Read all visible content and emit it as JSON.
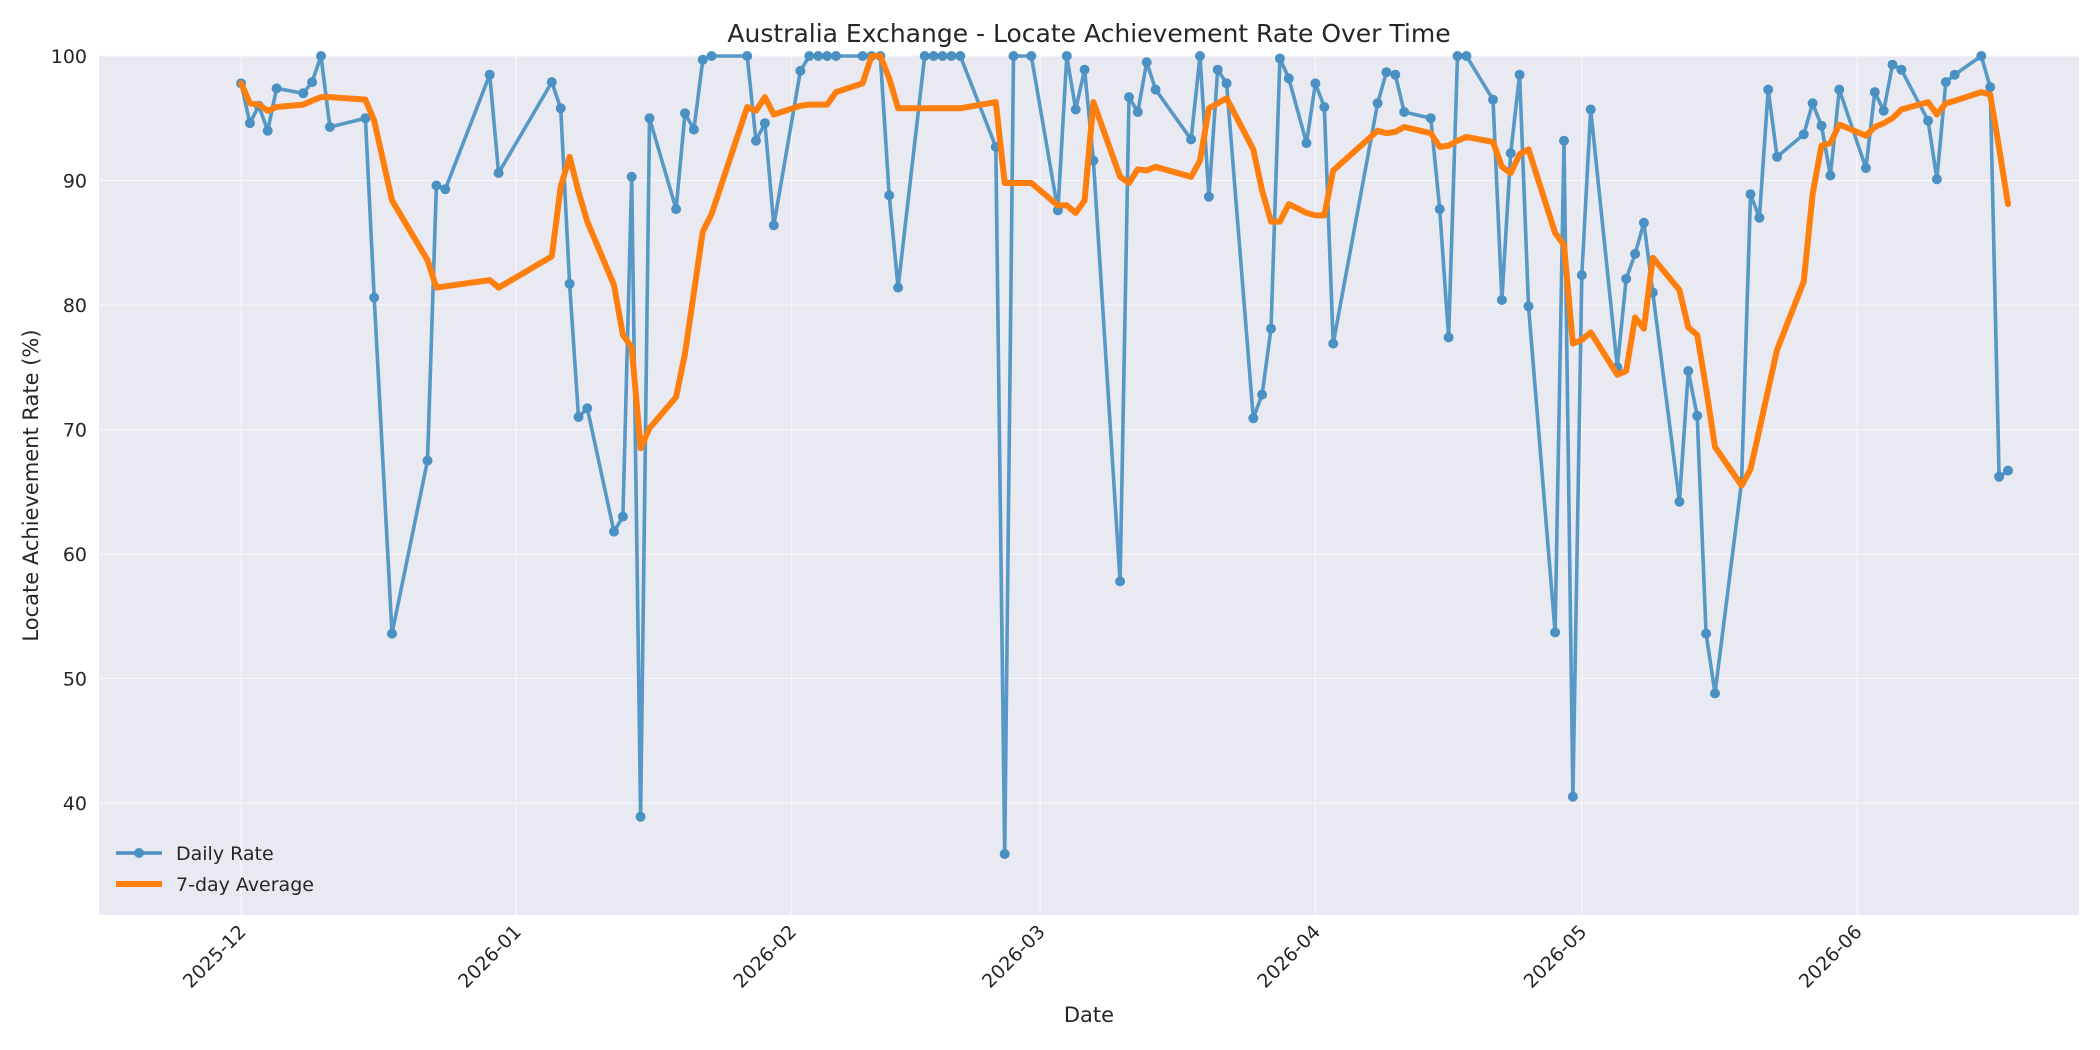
{
  "chart_data": {
    "type": "line",
    "title": "Australia Exchange - Locate Achievement Rate Over Time",
    "xlabel": "Date",
    "ylabel": "Locate Achievement Rate (%)",
    "xlim": [
      "2025-11-15",
      "2026-06-26"
    ],
    "ylim": [
      31,
      100
    ],
    "x_ticks": [
      "2025-12",
      "2026-01",
      "2026-02",
      "2026-03",
      "2026-04",
      "2026-05",
      "2026-06"
    ],
    "y_ticks": [
      40,
      50,
      60,
      70,
      80,
      90,
      100
    ],
    "grid": true,
    "legend_position": "lower-left",
    "colors": {
      "daily": "#4a90c2",
      "average": "#ff7f0e",
      "plot_bg": "#e9e9f1",
      "grid": "#f7f7fa"
    },
    "series": [
      {
        "name": "Daily Rate",
        "marker": "circle",
        "points": [
          [
            "2025-12-01",
            97.8
          ],
          [
            "2025-12-02",
            94.6
          ],
          [
            "2025-12-03",
            96.0
          ],
          [
            "2025-12-04",
            94.0
          ],
          [
            "2025-12-05",
            97.4
          ],
          [
            "2025-12-08",
            97.0
          ],
          [
            "2025-12-09",
            97.9
          ],
          [
            "2025-12-10",
            100.0
          ],
          [
            "2025-12-11",
            94.3
          ],
          [
            "2025-12-15",
            95.0
          ],
          [
            "2025-12-16",
            80.6
          ],
          [
            "2025-12-18",
            53.6
          ],
          [
            "2025-12-22",
            67.5
          ],
          [
            "2025-12-23",
            89.6
          ],
          [
            "2025-12-24",
            89.3
          ],
          [
            "2025-12-29",
            98.5
          ],
          [
            "2025-12-30",
            90.6
          ],
          [
            "2026-01-05",
            97.9
          ],
          [
            "2026-01-06",
            95.8
          ],
          [
            "2026-01-07",
            81.7
          ],
          [
            "2026-01-08",
            71.0
          ],
          [
            "2026-01-09",
            71.7
          ],
          [
            "2026-01-12",
            61.8
          ],
          [
            "2026-01-13",
            63.0
          ],
          [
            "2026-01-14",
            90.3
          ],
          [
            "2026-01-15",
            38.9
          ],
          [
            "2026-01-16",
            95.0
          ],
          [
            "2026-01-19",
            87.7
          ],
          [
            "2026-01-20",
            95.4
          ],
          [
            "2026-01-21",
            94.1
          ],
          [
            "2026-01-22",
            99.7
          ],
          [
            "2026-01-23",
            100.0
          ],
          [
            "2026-01-27",
            100.0
          ],
          [
            "2026-01-28",
            93.2
          ],
          [
            "2026-01-29",
            94.6
          ],
          [
            "2026-01-30",
            86.4
          ],
          [
            "2026-02-02",
            98.8
          ],
          [
            "2026-02-03",
            100.0
          ],
          [
            "2026-02-04",
            100.0
          ],
          [
            "2026-02-05",
            100.0
          ],
          [
            "2026-02-06",
            100.0
          ],
          [
            "2026-02-09",
            100.0
          ],
          [
            "2026-02-10",
            100.0
          ],
          [
            "2026-02-11",
            100.0
          ],
          [
            "2026-02-12",
            88.8
          ],
          [
            "2026-02-13",
            81.4
          ],
          [
            "2026-02-16",
            100.0
          ],
          [
            "2026-02-17",
            100.0
          ],
          [
            "2026-02-18",
            100.0
          ],
          [
            "2026-02-19",
            100.0
          ],
          [
            "2026-02-20",
            100.0
          ],
          [
            "2026-02-24",
            92.7
          ],
          [
            "2026-02-25",
            35.9
          ],
          [
            "2026-02-26",
            100.0
          ],
          [
            "2026-02-28",
            100.0
          ],
          [
            "2026-03-03",
            87.6
          ],
          [
            "2026-03-04",
            100.0
          ],
          [
            "2026-03-05",
            95.7
          ],
          [
            "2026-03-06",
            98.9
          ],
          [
            "2026-03-07",
            91.6
          ],
          [
            "2026-03-10",
            57.8
          ],
          [
            "2026-03-11",
            96.7
          ],
          [
            "2026-03-12",
            95.5
          ],
          [
            "2026-03-13",
            99.5
          ],
          [
            "2026-03-14",
            97.3
          ],
          [
            "2026-03-18",
            93.3
          ],
          [
            "2026-03-19",
            100.0
          ],
          [
            "2026-03-20",
            88.7
          ],
          [
            "2026-03-21",
            98.9
          ],
          [
            "2026-03-22",
            97.8
          ],
          [
            "2026-03-25",
            70.9
          ],
          [
            "2026-03-26",
            72.8
          ],
          [
            "2026-03-27",
            78.1
          ],
          [
            "2026-03-28",
            99.8
          ],
          [
            "2026-03-29",
            98.2
          ],
          [
            "2026-03-31",
            93.0
          ],
          [
            "2026-04-01",
            97.8
          ],
          [
            "2026-04-02",
            95.9
          ],
          [
            "2026-04-03",
            76.9
          ],
          [
            "2026-04-08",
            96.2
          ],
          [
            "2026-04-09",
            98.7
          ],
          [
            "2026-04-10",
            98.5
          ],
          [
            "2026-04-11",
            95.5
          ],
          [
            "2026-04-14",
            95.0
          ],
          [
            "2026-04-15",
            87.7
          ],
          [
            "2026-04-16",
            77.4
          ],
          [
            "2026-04-17",
            100.0
          ],
          [
            "2026-04-18",
            100.0
          ],
          [
            "2026-04-21",
            96.5
          ],
          [
            "2026-04-22",
            80.4
          ],
          [
            "2026-04-23",
            92.2
          ],
          [
            "2026-04-24",
            98.5
          ],
          [
            "2026-04-25",
            79.9
          ],
          [
            "2026-04-28",
            53.7
          ],
          [
            "2026-04-29",
            93.2
          ],
          [
            "2026-04-30",
            40.5
          ],
          [
            "2026-05-01",
            82.4
          ],
          [
            "2026-05-02",
            95.7
          ],
          [
            "2026-05-05",
            75.0
          ],
          [
            "2026-05-06",
            82.1
          ],
          [
            "2026-05-07",
            84.1
          ],
          [
            "2026-05-08",
            86.6
          ],
          [
            "2026-05-09",
            81.0
          ],
          [
            "2026-05-12",
            64.2
          ],
          [
            "2026-05-13",
            74.7
          ],
          [
            "2026-05-14",
            71.1
          ],
          [
            "2026-05-15",
            53.6
          ],
          [
            "2026-05-16",
            48.8
          ],
          [
            "2026-05-19",
            65.8
          ],
          [
            "2026-05-20",
            88.9
          ],
          [
            "2026-05-21",
            87.0
          ],
          [
            "2026-05-22",
            97.3
          ],
          [
            "2026-05-23",
            91.9
          ],
          [
            "2026-05-26",
            93.7
          ],
          [
            "2026-05-27",
            96.2
          ],
          [
            "2026-05-28",
            94.4
          ],
          [
            "2026-05-29",
            90.4
          ],
          [
            "2026-05-30",
            97.3
          ],
          [
            "2026-06-02",
            91.0
          ],
          [
            "2026-06-03",
            97.1
          ],
          [
            "2026-06-04",
            95.6
          ],
          [
            "2026-06-05",
            99.3
          ],
          [
            "2026-06-06",
            98.9
          ],
          [
            "2026-06-09",
            94.8
          ],
          [
            "2026-06-10",
            90.1
          ],
          [
            "2026-06-11",
            97.9
          ],
          [
            "2026-06-12",
            98.5
          ],
          [
            "2026-06-15",
            100.0
          ],
          [
            "2026-06-16",
            97.5
          ],
          [
            "2026-06-17",
            66.2
          ],
          [
            "2026-06-18",
            66.7
          ]
        ]
      },
      {
        "name": "7-day Average",
        "points": [
          [
            "2025-12-01",
            97.8
          ],
          [
            "2025-12-02",
            96.2
          ],
          [
            "2025-12-03",
            96.1
          ],
          [
            "2025-12-04",
            95.6
          ],
          [
            "2025-12-05",
            95.9
          ],
          [
            "2025-12-08",
            96.1
          ],
          [
            "2025-12-09",
            96.4
          ],
          [
            "2025-12-10",
            96.7
          ],
          [
            "2025-12-11",
            96.7
          ],
          [
            "2025-12-15",
            96.5
          ],
          [
            "2025-12-16",
            94.8
          ],
          [
            "2025-12-18",
            88.4
          ],
          [
            "2025-12-22",
            83.6
          ],
          [
            "2025-12-23",
            81.4
          ],
          [
            "2025-12-24",
            81.5
          ],
          [
            "2025-12-29",
            82.0
          ],
          [
            "2025-12-30",
            81.4
          ],
          [
            "2026-01-05",
            83.9
          ],
          [
            "2026-01-06",
            89.5
          ],
          [
            "2026-01-07",
            91.9
          ],
          [
            "2026-01-08",
            89.1
          ],
          [
            "2026-01-09",
            86.7
          ],
          [
            "2026-01-12",
            81.6
          ],
          [
            "2026-01-13",
            77.6
          ],
          [
            "2026-01-14",
            76.6
          ],
          [
            "2026-01-15",
            68.5
          ],
          [
            "2026-01-16",
            70.1
          ],
          [
            "2026-01-19",
            72.6
          ],
          [
            "2026-01-20",
            76.1
          ],
          [
            "2026-01-21",
            81.0
          ],
          [
            "2026-01-22",
            85.9
          ],
          [
            "2026-01-23",
            87.3
          ],
          [
            "2026-01-27",
            95.9
          ],
          [
            "2026-01-28",
            95.6
          ],
          [
            "2026-01-29",
            96.7
          ],
          [
            "2026-01-30",
            95.3
          ],
          [
            "2026-02-02",
            96.0
          ],
          [
            "2026-02-03",
            96.1
          ],
          [
            "2026-02-04",
            96.1
          ],
          [
            "2026-02-05",
            96.1
          ],
          [
            "2026-02-06",
            97.1
          ],
          [
            "2026-02-09",
            97.8
          ],
          [
            "2026-02-10",
            100.0
          ],
          [
            "2026-02-11",
            100.0
          ],
          [
            "2026-02-12",
            98.2
          ],
          [
            "2026-02-13",
            95.8
          ],
          [
            "2026-02-16",
            95.8
          ],
          [
            "2026-02-17",
            95.8
          ],
          [
            "2026-02-18",
            95.8
          ],
          [
            "2026-02-19",
            95.8
          ],
          [
            "2026-02-20",
            95.8
          ],
          [
            "2026-02-24",
            96.3
          ],
          [
            "2026-02-25",
            89.8
          ],
          [
            "2026-02-26",
            89.8
          ],
          [
            "2026-02-28",
            89.8
          ],
          [
            "2026-03-03",
            88.0
          ],
          [
            "2026-03-04",
            88.0
          ],
          [
            "2026-03-05",
            87.4
          ],
          [
            "2026-03-06",
            88.4
          ],
          [
            "2026-03-07",
            96.3
          ],
          [
            "2026-03-10",
            90.3
          ],
          [
            "2026-03-11",
            89.8
          ],
          [
            "2026-03-12",
            90.9
          ],
          [
            "2026-03-13",
            90.8
          ],
          [
            "2026-03-14",
            91.1
          ],
          [
            "2026-03-18",
            90.3
          ],
          [
            "2026-03-19",
            91.6
          ],
          [
            "2026-03-20",
            95.8
          ],
          [
            "2026-03-21",
            96.2
          ],
          [
            "2026-03-22",
            96.6
          ],
          [
            "2026-03-25",
            92.5
          ],
          [
            "2026-03-26",
            89.2
          ],
          [
            "2026-03-27",
            86.7
          ],
          [
            "2026-03-28",
            86.7
          ],
          [
            "2026-03-29",
            88.1
          ],
          [
            "2026-03-31",
            87.4
          ],
          [
            "2026-04-01",
            87.2
          ],
          [
            "2026-04-02",
            87.2
          ],
          [
            "2026-04-03",
            90.8
          ],
          [
            "2026-04-08",
            94.0
          ],
          [
            "2026-04-09",
            93.8
          ],
          [
            "2026-04-10",
            93.9
          ],
          [
            "2026-04-11",
            94.3
          ],
          [
            "2026-04-14",
            93.8
          ],
          [
            "2026-04-15",
            92.7
          ],
          [
            "2026-04-16",
            92.8
          ],
          [
            "2026-04-17",
            93.2
          ],
          [
            "2026-04-18",
            93.5
          ],
          [
            "2026-04-21",
            93.1
          ],
          [
            "2026-04-22",
            91.1
          ],
          [
            "2026-04-23",
            90.6
          ],
          [
            "2026-04-24",
            92.1
          ],
          [
            "2026-04-25",
            92.5
          ],
          [
            "2026-04-28",
            85.8
          ],
          [
            "2026-04-29",
            84.8
          ],
          [
            "2026-04-30",
            76.9
          ],
          [
            "2026-05-01",
            77.2
          ],
          [
            "2026-05-02",
            77.8
          ],
          [
            "2026-05-05",
            74.4
          ],
          [
            "2026-05-06",
            74.7
          ],
          [
            "2026-05-07",
            79.0
          ],
          [
            "2026-05-08",
            78.1
          ],
          [
            "2026-05-09",
            83.8
          ],
          [
            "2026-05-12",
            81.2
          ],
          [
            "2026-05-13",
            78.2
          ],
          [
            "2026-05-14",
            77.6
          ],
          [
            "2026-05-15",
            73.3
          ],
          [
            "2026-05-16",
            68.6
          ],
          [
            "2026-05-19",
            65.5
          ],
          [
            "2026-05-20",
            66.8
          ],
          [
            "2026-05-21",
            70.0
          ],
          [
            "2026-05-22",
            73.2
          ],
          [
            "2026-05-23",
            76.4
          ],
          [
            "2026-05-26",
            81.9
          ],
          [
            "2026-05-27",
            88.9
          ],
          [
            "2026-05-28",
            92.8
          ],
          [
            "2026-05-29",
            93.0
          ],
          [
            "2026-05-30",
            94.5
          ],
          [
            "2026-06-02",
            93.6
          ],
          [
            "2026-06-03",
            94.3
          ],
          [
            "2026-06-04",
            94.6
          ],
          [
            "2026-06-05",
            95.0
          ],
          [
            "2026-06-06",
            95.7
          ],
          [
            "2026-06-09",
            96.3
          ],
          [
            "2026-06-10",
            95.3
          ],
          [
            "2026-06-11",
            96.2
          ],
          [
            "2026-06-12",
            96.4
          ],
          [
            "2026-06-15",
            97.1
          ],
          [
            "2026-06-16",
            96.9
          ],
          [
            "2026-06-17",
            92.6
          ],
          [
            "2026-06-18",
            88.1
          ]
        ]
      }
    ]
  }
}
